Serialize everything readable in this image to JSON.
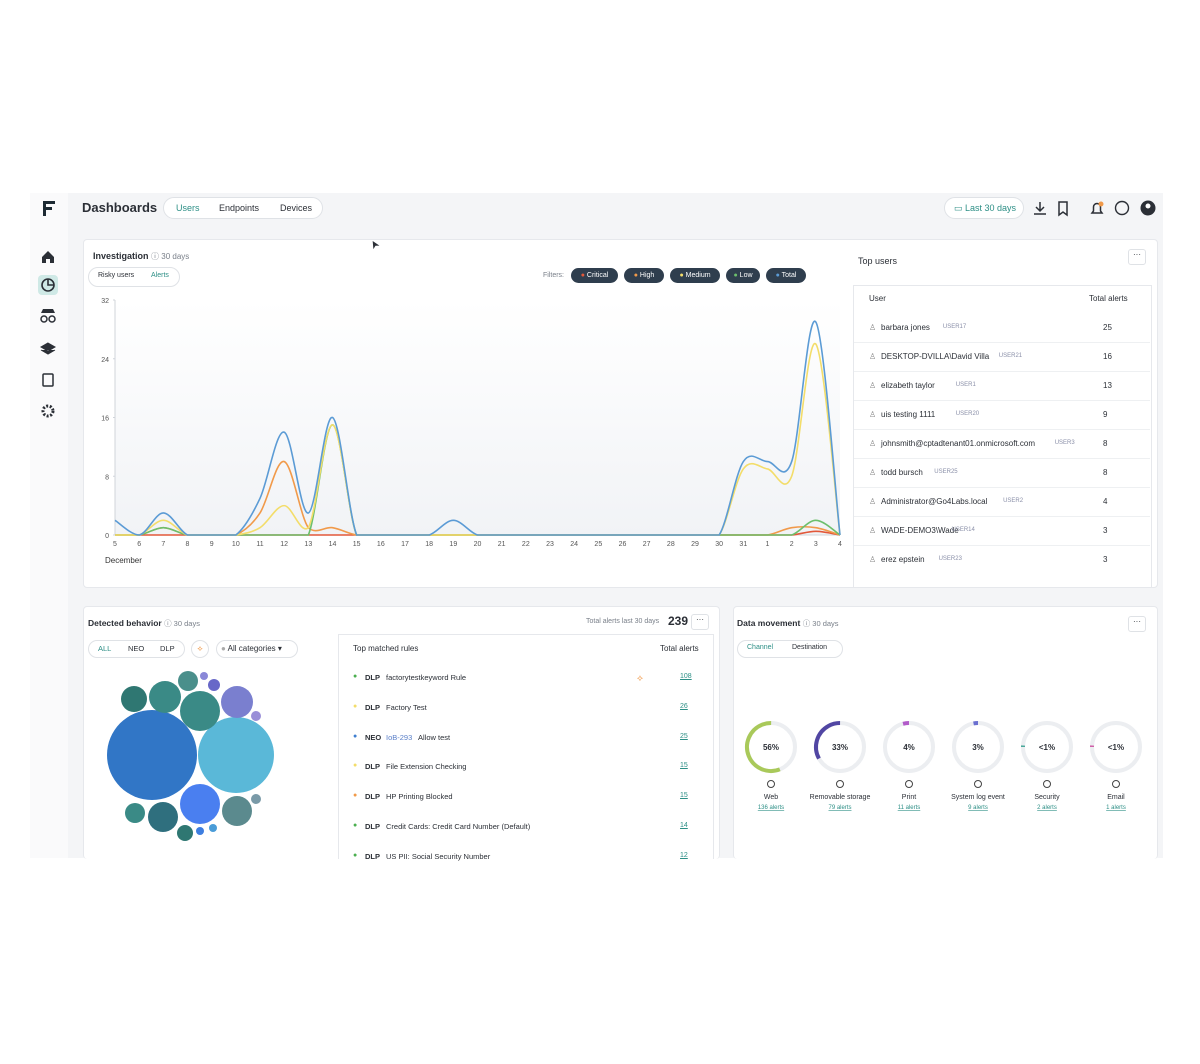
{
  "header": {
    "title": "Dashboards",
    "tabs": [
      "Users",
      "Endpoints",
      "Devices"
    ],
    "date_range": "Last 30 days"
  },
  "investigation": {
    "title": "Investigation",
    "period": "30 days",
    "toggles": [
      "Risky users",
      "Alerts"
    ],
    "filters_label": "Filters:",
    "filters": [
      {
        "name": "Critical",
        "color": "#e2583a"
      },
      {
        "name": "High",
        "color": "#f19a4a"
      },
      {
        "name": "Medium",
        "color": "#f3dd6a"
      },
      {
        "name": "Low",
        "color": "#6cbf6c"
      },
      {
        "name": "Total",
        "color": "#5b9bd5"
      }
    ],
    "chart": {
      "type": "line",
      "categories": [
        "5",
        "6",
        "7",
        "8",
        "9",
        "10",
        "11",
        "12",
        "13",
        "14",
        "15",
        "16",
        "17",
        "18",
        "19",
        "20",
        "21",
        "22",
        "23",
        "24",
        "25",
        "26",
        "27",
        "28",
        "29",
        "30",
        "31",
        "1",
        "2",
        "3",
        "4"
      ],
      "x_label": "December",
      "ylim": [
        0,
        32
      ],
      "yticks": [
        0,
        8,
        16,
        24,
        32
      ],
      "series": [
        {
          "name": "Critical",
          "color": "#e2583a",
          "values": [
            0,
            0,
            0,
            0,
            0,
            0,
            0,
            0,
            0,
            0,
            0,
            0,
            0,
            0,
            0,
            0,
            0,
            0,
            0,
            0,
            0,
            0,
            0,
            0,
            0,
            0,
            0,
            0,
            0,
            0.5,
            0
          ]
        },
        {
          "name": "High",
          "color": "#f19a4a",
          "values": [
            0,
            0,
            1,
            0,
            0,
            0,
            3,
            10,
            1,
            1,
            0,
            0,
            0,
            0,
            0,
            0,
            0,
            0,
            0,
            0,
            0,
            0,
            0,
            0,
            0,
            0,
            0,
            0,
            1,
            1,
            0
          ]
        },
        {
          "name": "Low",
          "color": "#6cbf6c",
          "values": [
            0,
            0,
            1,
            0,
            0,
            0,
            0,
            0,
            0,
            15,
            0,
            0,
            0,
            0,
            0,
            0,
            0,
            0,
            0,
            0,
            0,
            0,
            0,
            0,
            0,
            0,
            0,
            0,
            0,
            2,
            0
          ]
        },
        {
          "name": "Medium",
          "color": "#f3dd6a",
          "values": [
            0,
            0,
            2,
            0,
            0,
            0,
            1,
            4,
            1,
            15,
            0,
            0,
            0,
            0,
            0,
            0,
            0,
            0,
            0,
            0,
            0,
            0,
            0,
            0,
            0,
            0,
            9,
            9,
            8,
            26,
            0
          ]
        },
        {
          "name": "Total",
          "color": "#5b9bd5",
          "values": [
            2,
            0,
            3,
            0,
            0,
            0,
            5,
            14,
            3,
            16,
            0,
            0,
            0,
            0,
            2,
            0,
            0,
            0,
            0,
            0,
            0,
            0,
            0,
            0,
            0,
            0,
            10,
            10,
            10,
            29,
            0
          ]
        }
      ]
    }
  },
  "top_users": {
    "title": "Top users",
    "columns": [
      "User",
      "Total alerts"
    ],
    "rows": [
      {
        "name": "barbara jones",
        "id": "USER17",
        "alerts": 25
      },
      {
        "name": "DESKTOP-DVILLA\\David Villa",
        "id": "USER21",
        "alerts": 16
      },
      {
        "name": "elizabeth taylor",
        "id": "USER1",
        "alerts": 13
      },
      {
        "name": "uis testing 1111",
        "id": "USER20",
        "alerts": 9
      },
      {
        "name": "johnsmith@cptadtenant01.onmicrosoft.com",
        "id": "USER3",
        "alerts": 8
      },
      {
        "name": "todd bursch",
        "id": "USER25",
        "alerts": 8
      },
      {
        "name": "Administrator@Go4Labs.local",
        "id": "USER2",
        "alerts": 4
      },
      {
        "name": "WADE-DEMO3\\Wade",
        "id": "USER14",
        "alerts": 3
      },
      {
        "name": "erez epstein",
        "id": "USER23",
        "alerts": 3
      }
    ]
  },
  "detected_behavior": {
    "title": "Detected behavior",
    "period": "30 days",
    "total_label": "Total alerts last 30 days",
    "total": 239,
    "tabs": [
      "ALL",
      "NEO",
      "DLP"
    ],
    "category_select": "All categories",
    "rules_title": "Top matched rules",
    "rules_count_title": "Total alerts",
    "rules": [
      {
        "tag": "DLP",
        "name": "factorytestkeyword Rule",
        "count": 108,
        "dot": "#4caf50"
      },
      {
        "tag": "DLP",
        "name": "Factory Test",
        "count": 26,
        "dot": "#f3dd6a"
      },
      {
        "tag": "NEO",
        "ref": "IoB-293",
        "name": "Allow test",
        "count": 25,
        "dot": "#3f7fd0"
      },
      {
        "tag": "DLP",
        "name": "File Extension Checking",
        "count": 15,
        "dot": "#f3dd6a"
      },
      {
        "tag": "DLP",
        "name": "HP Printing Blocked",
        "count": 15,
        "dot": "#f19a4a"
      },
      {
        "tag": "DLP",
        "name": "Credit Cards: Credit Card Number (Default)",
        "count": 14,
        "dot": "#4caf50"
      },
      {
        "tag": "DLP",
        "name": "US PII: Social Security Number",
        "count": 12,
        "dot": "#4caf50"
      }
    ]
  },
  "data_movement": {
    "title": "Data movement",
    "period": "30 days",
    "tabs": [
      "Channel",
      "Destination"
    ],
    "channels": [
      {
        "percent": {
          "value": 56,
          "label": "56%"
        },
        "name": "Web",
        "alerts": "136 alerts",
        "color": "#a9c95a"
      },
      {
        "percent": {
          "value": 33,
          "label": "33%"
        },
        "name": "Removable storage",
        "alerts": "79 alerts",
        "color": "#5146a3"
      },
      {
        "percent": {
          "value": 4,
          "label": "4%"
        },
        "name": "Print",
        "alerts": "11 alerts",
        "color": "#b25bc9"
      },
      {
        "percent": {
          "value": 3,
          "label": "3%"
        },
        "name": "System log event",
        "alerts": "9 alerts",
        "color": "#6a6fd0"
      },
      {
        "percent": "<1%",
        "name": "Security",
        "alerts": "2 alerts",
        "color": "#4aa89a"
      },
      {
        "percent": "<1%",
        "name": "Email",
        "alerts": "1 alerts",
        "color": "#d060a8"
      }
    ]
  }
}
